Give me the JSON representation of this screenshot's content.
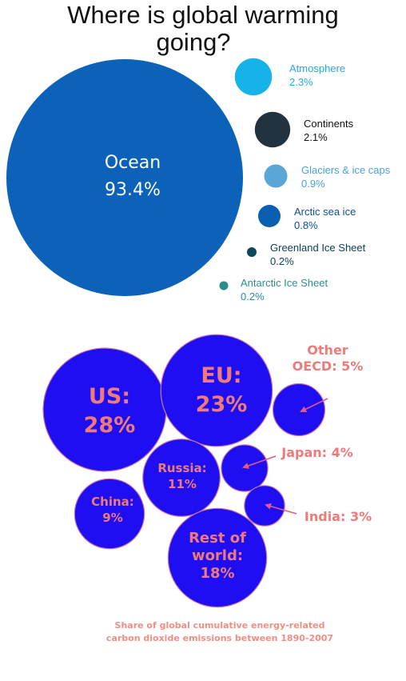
{
  "title_line_1": "Where is global warming",
  "title_line_2": "going?",
  "chart_data": [
    {
      "type": "bubble",
      "title": "Where is global warming going?",
      "categories": [
        "Ocean",
        "Atmosphere",
        "Continents",
        "Glaciers & ice caps",
        "Arctic sea ice",
        "Greenland Ice Sheet",
        "Antarctic Ice Sheet"
      ],
      "values": [
        93.4,
        2.3,
        2.1,
        0.9,
        0.8,
        0.2,
        0.2
      ],
      "unit": "%",
      "labels": [
        {
          "name": "Ocean",
          "value": "93.4%"
        },
        {
          "name": "Atmosphere",
          "value": "2.3%"
        },
        {
          "name": "Continents",
          "value": "2.1%"
        },
        {
          "name": "Glaciers & ice caps",
          "value": "0.9%"
        },
        {
          "name": "Arctic sea ice",
          "value": "0.8%"
        },
        {
          "name": "Greenland Ice Sheet",
          "value": "0.2%"
        },
        {
          "name": "Antarctic Ice Sheet",
          "value": "0.2%"
        }
      ],
      "colors": [
        "#0b62b8",
        "#16b3e8",
        "#22323f",
        "#5aa6d6",
        "#0b5fb0",
        "#0b4a5e",
        "#2a8c8c"
      ],
      "label_colors": [
        "#ffffff",
        "#1aaee0",
        "#111111",
        "#4aa0d8",
        "#0b4f9a",
        "#0b3c56",
        "#2d8c92"
      ]
    },
    {
      "type": "bubble",
      "title": "",
      "categories": [
        "US",
        "EU",
        "Other OECD",
        "Japan",
        "Russia",
        "China",
        "India",
        "Rest of world"
      ],
      "values": [
        28,
        23,
        5,
        4,
        11,
        9,
        3,
        18
      ],
      "unit": "%",
      "labels": [
        {
          "lines": [
            "US:",
            "28%"
          ]
        },
        {
          "lines": [
            "EU:",
            "23%"
          ]
        },
        {
          "lines": [
            "Other",
            "OECD: 5%"
          ]
        },
        {
          "lines": [
            "Japan: 4%"
          ]
        },
        {
          "lines": [
            "Russia:",
            "11%"
          ]
        },
        {
          "lines": [
            "China:",
            "9%"
          ]
        },
        {
          "lines": [
            "India: 3%"
          ]
        },
        {
          "lines": [
            "Rest of",
            "world:",
            "18%"
          ]
        }
      ],
      "bubble_color": "#1f0ef2",
      "label_color": "#ee7a7a",
      "caption_line_1": "Share of global cumulative energy-related",
      "caption_line_2": "carbon dioxide emissions between 1890-2007"
    }
  ]
}
